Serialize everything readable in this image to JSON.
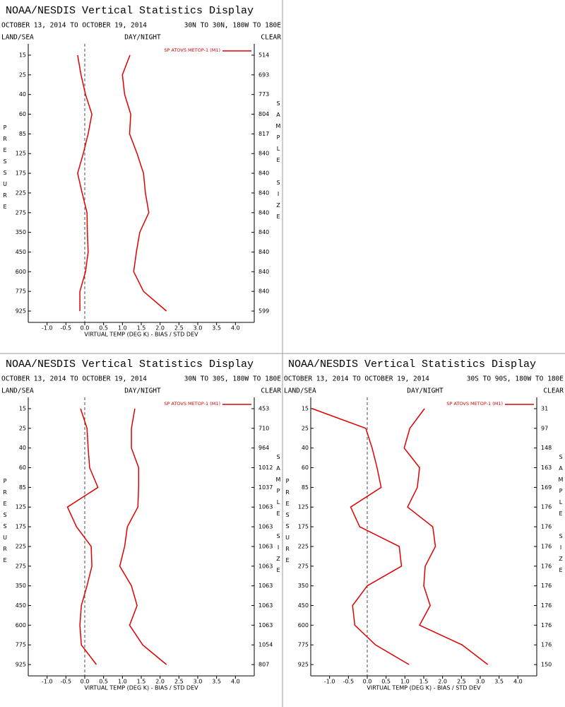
{
  "chart_data": [
    {
      "type": "line",
      "title": "NOAA/NESDIS Vertical Statistics Display",
      "subtitle": "OCTOBER 13, 2014 TO OCTOBER 19, 2014",
      "region": "30N TO 30N, 180W TO 180E",
      "land_sea": "LAND/SEA",
      "day_night": "DAY/NIGHT",
      "clear": "CLEAR",
      "y_label": "PRESSURE",
      "y2_label": "SAMPLE SIZE",
      "x_label": "VIRTUAL TEMP (DEG K) - BIAS / STD DEV",
      "legend": "SP ATOVS METOP-1 (M1)",
      "categories": [
        15,
        25,
        40,
        60,
        85,
        125,
        175,
        225,
        275,
        350,
        450,
        600,
        775,
        925
      ],
      "sample_sizes": [
        514,
        693,
        773,
        804,
        817,
        840,
        840,
        840,
        840,
        840,
        840,
        840,
        840,
        599
      ],
      "series": [
        {
          "color": "#e00000",
          "values": [
            -0.19,
            -0.1,
            0.02,
            0.19,
            0.09,
            -0.04,
            -0.19,
            -0.07,
            0.06,
            0.07,
            0.09,
            0.02,
            -0.13,
            -0.13
          ]
        },
        {
          "color": "#e00000",
          "values": [
            1.2,
            1.0,
            1.06,
            1.22,
            1.19,
            1.39,
            1.56,
            1.61,
            1.7,
            1.46,
            1.37,
            1.3,
            1.56,
            2.17
          ]
        }
      ],
      "xlim": [
        -1.5,
        4.5
      ],
      "xticks": [
        {
          "value": -1,
          "label": "-1.0"
        },
        -0.5,
        {
          "value": 0,
          "label": "0.0"
        },
        0.5,
        {
          "value": 1,
          "label": "1.0"
        },
        1.5,
        {
          "value": 2,
          "label": "2.0"
        },
        2.5,
        {
          "value": 3,
          "label": "3.0"
        },
        3.5,
        {
          "value": 4,
          "label": "4.0"
        }
      ]
    },
    {
      "type": "line",
      "title": "NOAA/NESDIS Vertical Statistics Display",
      "subtitle": "OCTOBER 13, 2014 TO OCTOBER 19, 2014",
      "region": "30N TO 30S, 180W TO 180E",
      "land_sea": "LAND/SEA",
      "day_night": "DAY/NIGHT",
      "clear": "CLEAR",
      "y_label": "PRESSURE",
      "y2_label": "SAMPLE SIZE",
      "x_label": "VIRTUAL TEMP (DEG K) - BIAS / STD DEV",
      "legend": "SP ATOVS METOP-1 (M1)",
      "categories": [
        15,
        25,
        40,
        60,
        85,
        125,
        175,
        225,
        275,
        350,
        450,
        600,
        775,
        925
      ],
      "sample_sizes": [
        453,
        710,
        964,
        1012,
        1037,
        1063,
        1063,
        1063,
        1063,
        1063,
        1063,
        1063,
        1054,
        807
      ],
      "series": [
        {
          "color": "#e00000",
          "values": [
            -0.11,
            0.06,
            0.09,
            0.13,
            0.35,
            -0.46,
            -0.22,
            0.17,
            0.19,
            0.06,
            -0.09,
            -0.13,
            -0.09,
            0.31
          ]
        },
        {
          "color": "#e00000",
          "values": [
            1.33,
            1.24,
            1.24,
            1.43,
            1.43,
            1.41,
            1.13,
            1.06,
            0.93,
            1.24,
            1.39,
            1.19,
            1.54,
            2.17
          ]
        }
      ],
      "xlim": [
        -1.5,
        4.5
      ],
      "xticks": [
        {
          "value": -1,
          "label": "-1.0"
        },
        -0.5,
        {
          "value": 0,
          "label": "0.0"
        },
        0.5,
        {
          "value": 1,
          "label": "1.0"
        },
        1.5,
        {
          "value": 2,
          "label": "2.0"
        },
        2.5,
        {
          "value": 3,
          "label": "3.0"
        },
        3.5,
        {
          "value": 4,
          "label": "4.0"
        }
      ]
    },
    {
      "type": "line",
      "title": "NOAA/NESDIS Vertical Statistics Display",
      "subtitle": "OCTOBER 13, 2014 TO OCTOBER 19, 2014",
      "region": "30S TO 90S, 180W TO 180E",
      "land_sea": "LAND/SEA",
      "day_night": "DAY/NIGHT",
      "clear": "CLEAR",
      "y_label": "PRESSURE",
      "y2_label": "SAMPLE SIZE",
      "x_label": "VIRTUAL TEMP (DEG K) - BIAS / STD DEV",
      "legend": "SP ATOVS METOP-1 (M1)",
      "categories": [
        15,
        25,
        40,
        60,
        85,
        125,
        175,
        225,
        275,
        350,
        450,
        600,
        775,
        925
      ],
      "sample_sizes": [
        31,
        97,
        148,
        163,
        169,
        176,
        176,
        176,
        176,
        176,
        176,
        176,
        176,
        150
      ],
      "series": [
        {
          "color": "#e00000",
          "values": [
            -1.46,
            -0.04,
            0.13,
            0.26,
            0.37,
            -0.44,
            -0.2,
            0.85,
            0.91,
            0.0,
            -0.39,
            -0.33,
            0.22,
            1.11
          ]
        },
        {
          "color": "#e00000",
          "values": [
            1.52,
            1.13,
            0.98,
            1.39,
            1.33,
            1.07,
            1.74,
            1.81,
            1.54,
            1.5,
            1.67,
            1.39,
            2.52,
            3.2
          ]
        }
      ],
      "xlim": [
        -1.5,
        4.5
      ],
      "xticks": [
        {
          "value": -1,
          "label": "-1.0"
        },
        -0.5,
        {
          "value": 0,
          "label": "0.0"
        },
        0.5,
        {
          "value": 1,
          "label": "1.0"
        },
        1.5,
        {
          "value": 2,
          "label": "2.0"
        },
        2.5,
        {
          "value": 3,
          "label": "3.0"
        },
        3.5,
        {
          "value": 4,
          "label": "4.0"
        }
      ]
    }
  ]
}
